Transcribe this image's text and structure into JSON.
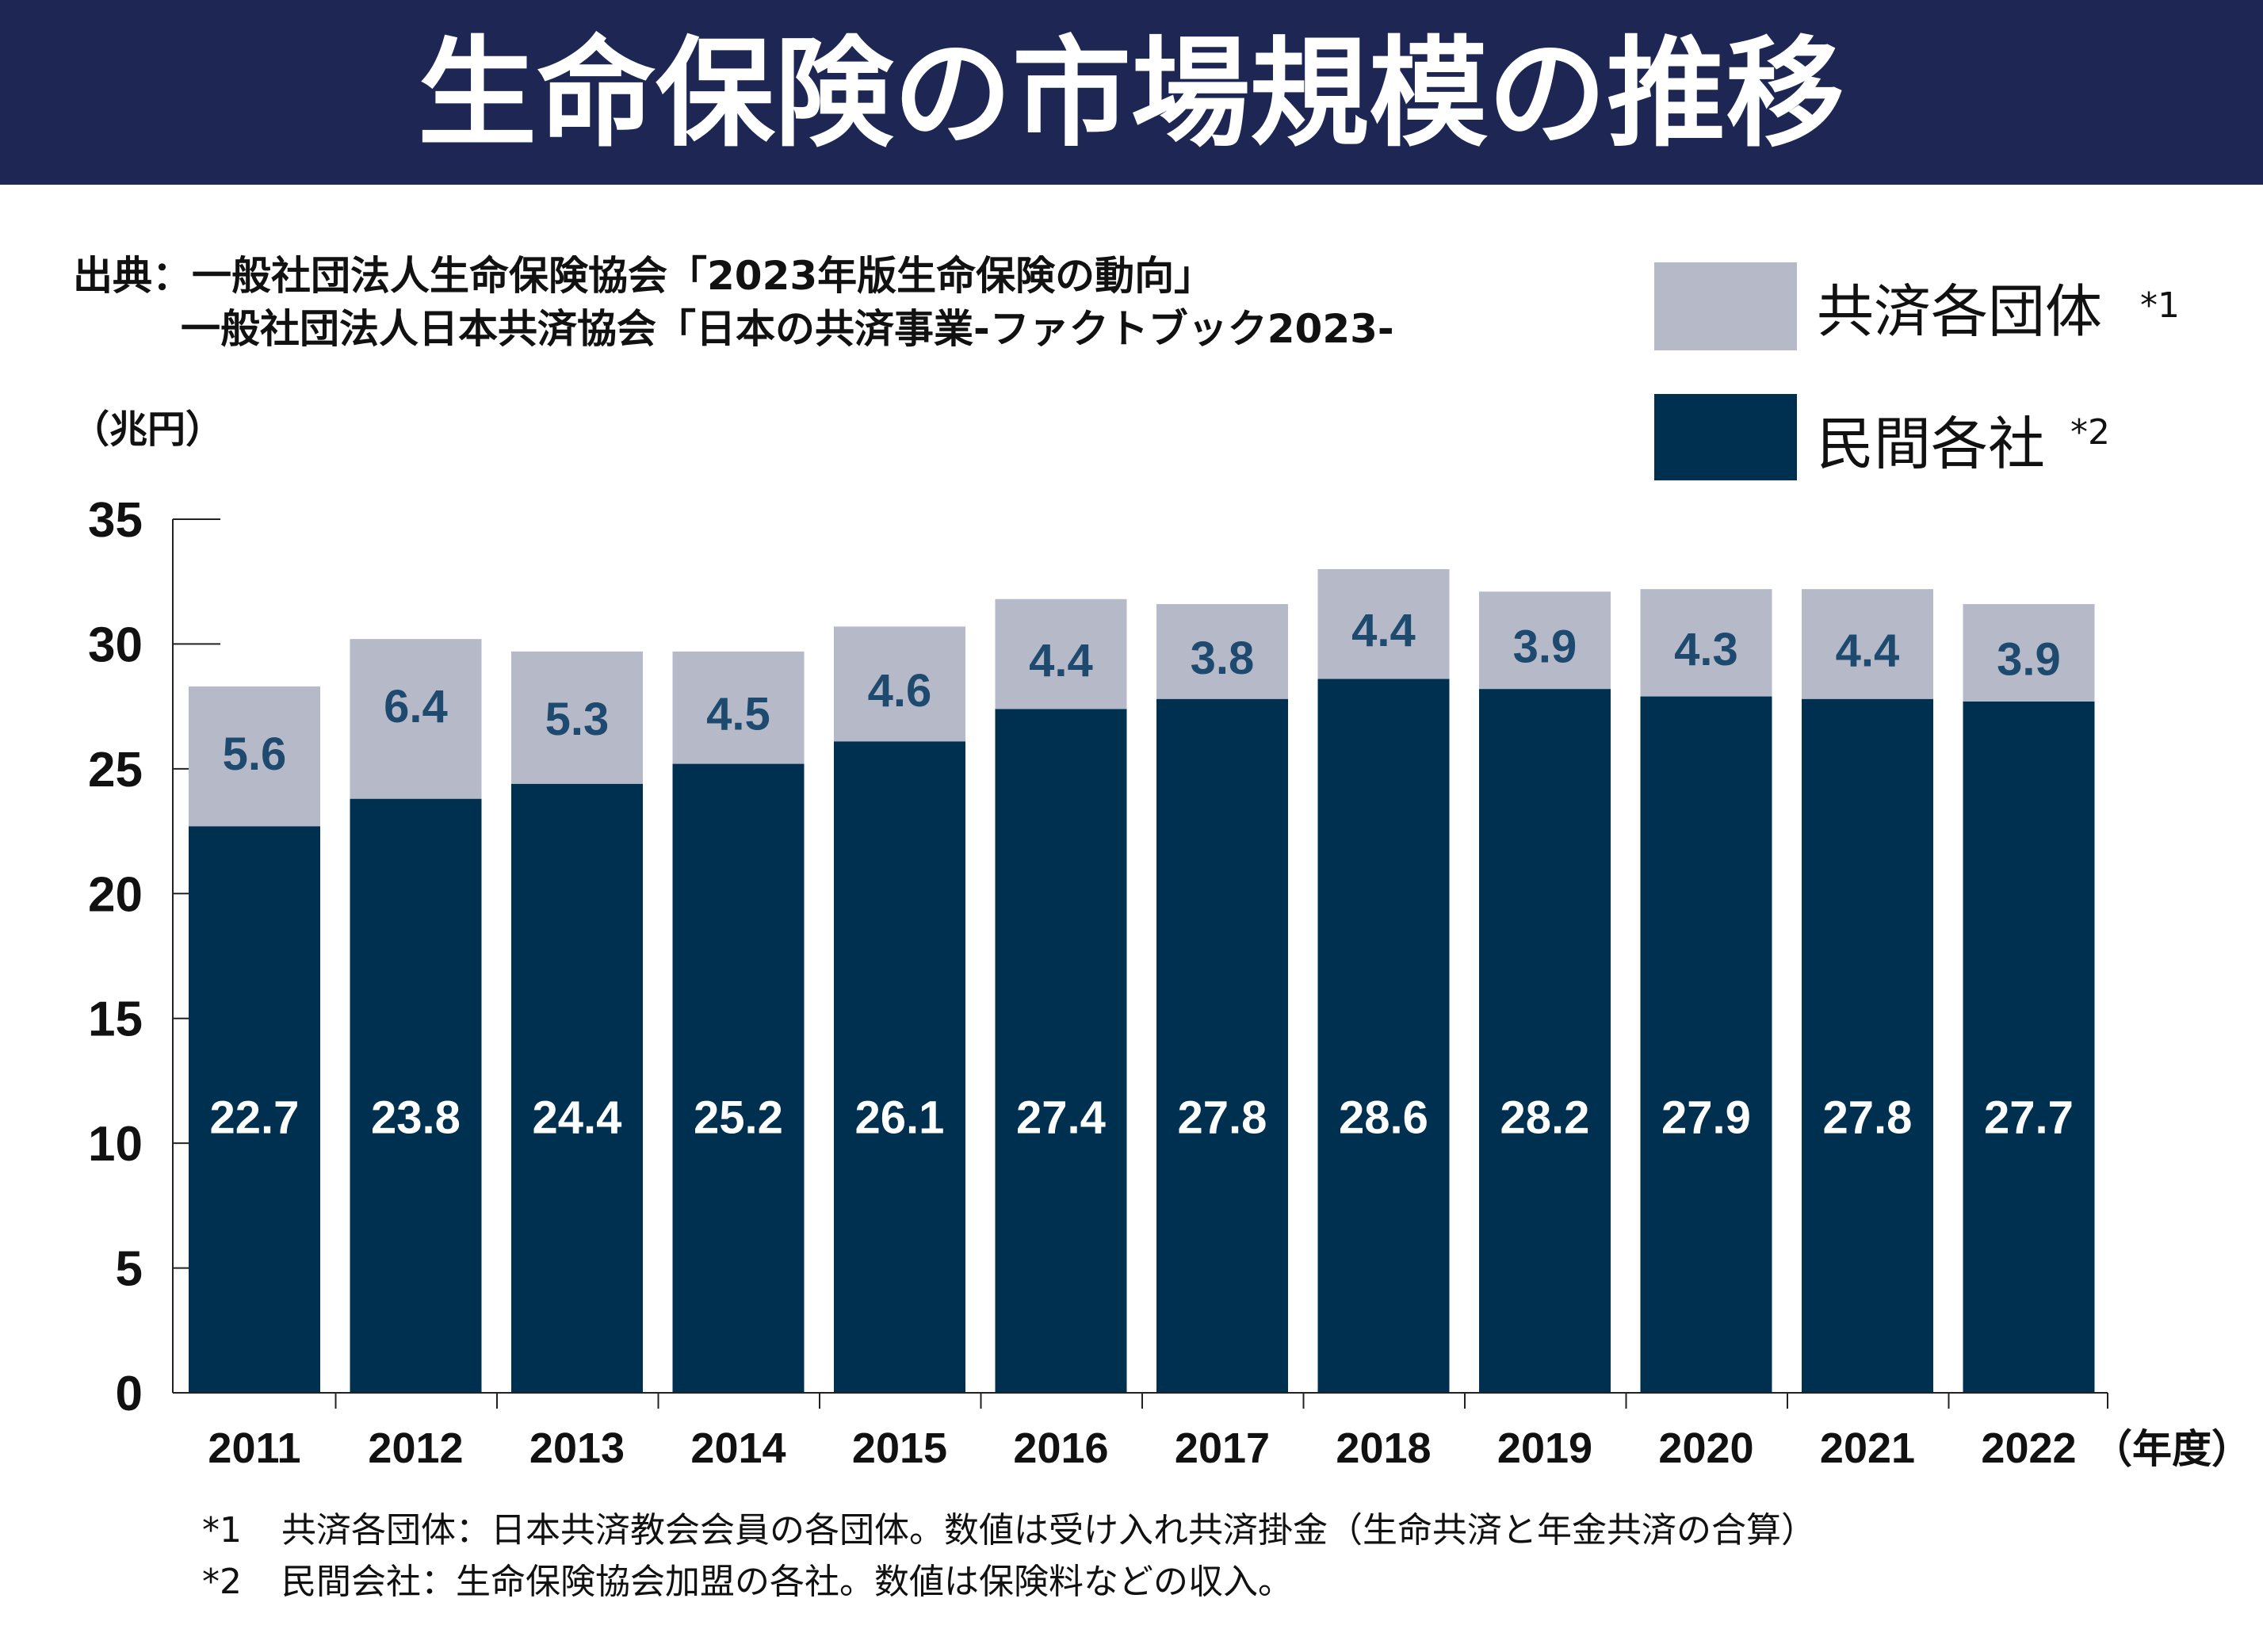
{
  "chart_data": {
    "type": "bar",
    "stacked": true,
    "title": "生命保険の市場規模の推移",
    "source_lines": [
      "出典：一般社団法人生命保険協会「2023年版生命保険の動向」",
      "一般社団法人日本共済協会「日本の共済事業-ファクトブック2023-"
    ],
    "ylabel": "（兆円）",
    "xlabel": "（年度）",
    "ylim": [
      0,
      35
    ],
    "yticks": [
      0,
      5,
      10,
      15,
      20,
      25,
      30,
      35
    ],
    "grid": false,
    "legend_position": "top-right",
    "categories": [
      "2011",
      "2012",
      "2013",
      "2014",
      "2015",
      "2016",
      "2017",
      "2018",
      "2019",
      "2020",
      "2021",
      "2022"
    ],
    "series": [
      {
        "name": "民間各社",
        "note_mark": "*2",
        "color": "#00304f",
        "values": [
          22.7,
          23.8,
          24.4,
          25.2,
          26.1,
          27.4,
          27.8,
          28.6,
          28.2,
          27.9,
          27.8,
          27.7
        ]
      },
      {
        "name": "共済各団体",
        "note_mark": "*1",
        "color": "#b6b9c8",
        "values": [
          5.6,
          6.4,
          5.3,
          4.5,
          4.6,
          4.4,
          3.8,
          4.4,
          3.9,
          4.3,
          4.4,
          3.9
        ]
      }
    ],
    "footnotes": [
      {
        "mark": "*1",
        "text": "共済各団体：日本共済教会会員の各団体。数値は受け入れ共済掛金（生命共済と年金共済の合算）"
      },
      {
        "mark": "*2",
        "text": "民間会社：生命保険協会加盟の各社。数値は保険料などの収入。"
      }
    ]
  },
  "colors": {
    "title_bar": "#1e2754",
    "light_label": "#1d4a6e"
  }
}
